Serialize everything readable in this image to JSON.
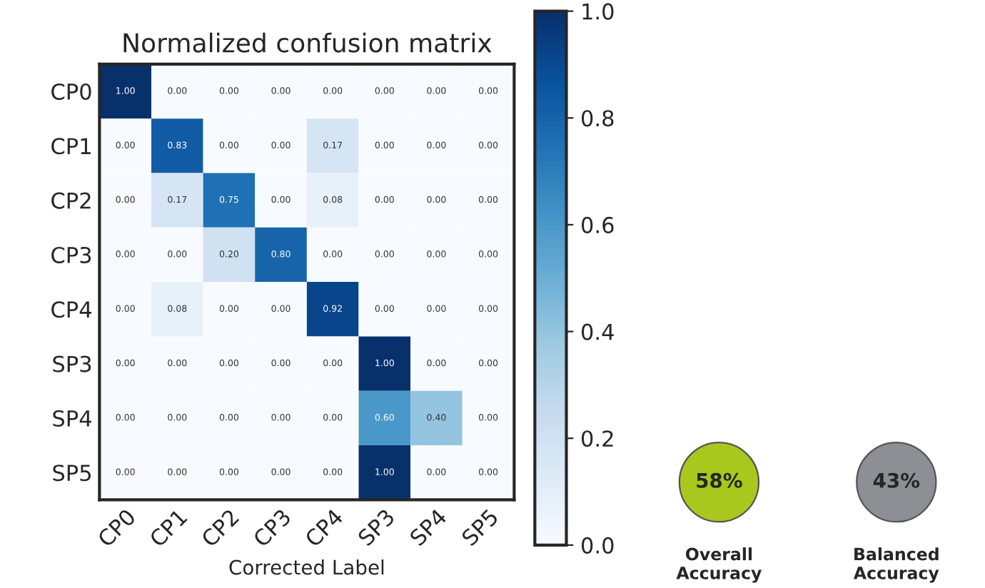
{
  "chart_data": [
    {
      "type": "heatmap",
      "title": "Normalized confusion matrix",
      "xlabel": "Corrected Label",
      "categories": [
        "CP0",
        "CP1",
        "CP2",
        "CP3",
        "CP4",
        "SP3",
        "SP4",
        "SP5"
      ],
      "y_categories": [
        "CP0",
        "CP1",
        "CP2",
        "CP3",
        "CP4",
        "SP3",
        "SP4",
        "SP5"
      ],
      "cells": [
        [
          1.0,
          0,
          0,
          0,
          0,
          0,
          0,
          0
        ],
        [
          0,
          0.83,
          0,
          0,
          0.17,
          0,
          0,
          0
        ],
        [
          0,
          0.17,
          0.75,
          0,
          0.08,
          0,
          0,
          0
        ],
        [
          0,
          0,
          0.2,
          0.8,
          0,
          0,
          0,
          0
        ],
        [
          0,
          0.08,
          0,
          0,
          0.92,
          0,
          0,
          0
        ],
        [
          0,
          0,
          0,
          0,
          0,
          1.0,
          0,
          0
        ],
        [
          0,
          0,
          0,
          0,
          0,
          0.6,
          0.4,
          0
        ],
        [
          0,
          0,
          0,
          0,
          0,
          1.0,
          0,
          0
        ]
      ],
      "cell_labels": [
        [
          "1.00",
          "0.00",
          "0.00",
          "0.00",
          "0.00",
          "0.00",
          "0.00",
          "0.00"
        ],
        [
          "0.00",
          "0.83",
          "0.00",
          "0.00",
          "0.17",
          "0.00",
          "0.00",
          "0.00"
        ],
        [
          "0.00",
          "0.17",
          "0.75",
          "0.00",
          "0.08",
          "0.00",
          "0.00",
          "0.00"
        ],
        [
          "0.00",
          "0.00",
          "0.20",
          "0.80",
          "0.00",
          "0.00",
          "0.00",
          "0.00"
        ],
        [
          "0.00",
          "0.08",
          "0.00",
          "0.00",
          "0.92",
          "0.00",
          "0.00",
          "0.00"
        ],
        [
          "0.00",
          "0.00",
          "0.00",
          "0.00",
          "0.00",
          "1.00",
          "0.00",
          "0.00"
        ],
        [
          "0.00",
          "0.00",
          "0.00",
          "0.00",
          "0.00",
          "0.60",
          "0.40",
          "0.00"
        ],
        [
          "0.00",
          "0.00",
          "0.00",
          "0.00",
          "0.00",
          "1.00",
          "0.00",
          "0.00"
        ]
      ],
      "clim": [
        0,
        1
      ],
      "cticks": [
        {
          "value": 0,
          "label": "0.0"
        },
        {
          "value": 0.2,
          "label": "0.2"
        },
        {
          "value": 0.4,
          "label": "0.4"
        },
        {
          "value": 0.6,
          "label": "0.6"
        },
        {
          "value": 0.8,
          "label": "0.8"
        },
        {
          "value": 1,
          "label": "1.0"
        }
      ]
    },
    {
      "type": "other",
      "categories": [
        "Overall\nAccuracy",
        "Balanced\nAccuracy"
      ],
      "annotations": [
        "58%",
        "43%"
      ],
      "colors": [
        "#a8c81e",
        "#8c8f93"
      ]
    }
  ]
}
